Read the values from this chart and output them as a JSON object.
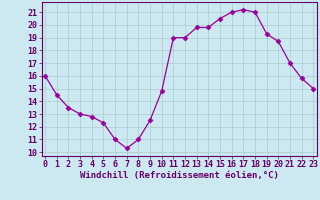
{
  "x": [
    0,
    1,
    2,
    3,
    4,
    5,
    6,
    7,
    8,
    9,
    10,
    11,
    12,
    13,
    14,
    15,
    16,
    17,
    18,
    19,
    20,
    21,
    22,
    23
  ],
  "y": [
    16.0,
    14.5,
    13.5,
    13.0,
    12.8,
    12.3,
    11.0,
    10.3,
    11.0,
    12.5,
    14.8,
    19.0,
    19.0,
    19.8,
    19.8,
    20.5,
    21.0,
    21.2,
    21.0,
    19.3,
    18.7,
    17.0,
    15.8,
    15.0
  ],
  "line_color": "#990099",
  "marker": "D",
  "marker_size": 2.5,
  "line_width": 0.9,
  "xlabel": "Windchill (Refroidissement éolien,°C)",
  "xlabel_color": "#660066",
  "xlabel_fontsize": 6.5,
  "ytick_values": [
    10,
    11,
    12,
    13,
    14,
    15,
    16,
    17,
    18,
    19,
    20,
    21
  ],
  "xtick_values": [
    0,
    1,
    2,
    3,
    4,
    5,
    6,
    7,
    8,
    9,
    10,
    11,
    12,
    13,
    14,
    15,
    16,
    17,
    18,
    19,
    20,
    21,
    22,
    23
  ],
  "ylim": [
    9.7,
    21.8
  ],
  "xlim": [
    -0.3,
    23.3
  ],
  "bg_color": "#cce8f0",
  "grid_color": "#aacccc",
  "tick_color": "#660066",
  "tick_fontsize": 6.0,
  "spine_color": "#660066",
  "border_color": "#660066"
}
